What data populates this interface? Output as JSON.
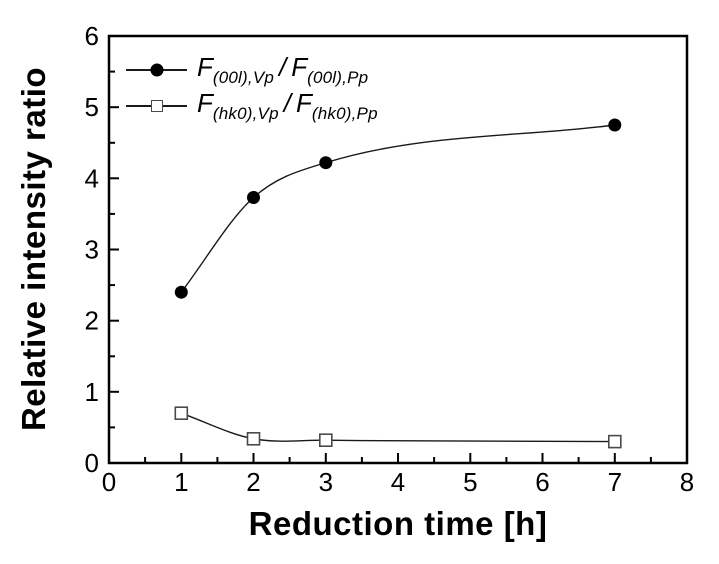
{
  "legend": {
    "items": [
      {
        "marker": "filled-circle",
        "f1": "F",
        "sub1": "(00l),Vp",
        "sep": "/",
        "f2": "F",
        "sub2": "(00l),Pp"
      },
      {
        "marker": "open-square",
        "f1": "F",
        "sub1": "(hk0),Vp",
        "sep": "/",
        "f2": "F",
        "sub2": "(hk0),Pp"
      }
    ]
  },
  "chart_data": {
    "type": "line",
    "title": "",
    "xlabel": "Reduction time [h]",
    "ylabel": "Relative intensity ratio",
    "xlim": [
      0,
      8
    ],
    "ylim": [
      0,
      6
    ],
    "x_ticks": [
      0,
      1,
      2,
      3,
      4,
      5,
      6,
      7,
      8
    ],
    "y_ticks": [
      0,
      1,
      2,
      3,
      4,
      5,
      6
    ],
    "minor_tick_step": 0.5,
    "grid": false,
    "legend_position": "top-left-inside",
    "frame_color": "#000000",
    "line_color": "#1a1a1a",
    "series": [
      {
        "name": "F(00l),Vp / F(00l),Pp",
        "marker": "filled-circle",
        "color": "#000000",
        "x": [
          1,
          2,
          3,
          7
        ],
        "y": [
          2.4,
          3.73,
          4.22,
          4.75
        ]
      },
      {
        "name": "F(hk0),Vp / F(hk0),Pp",
        "marker": "open-square",
        "color": "#000000",
        "x": [
          1,
          2,
          3,
          7
        ],
        "y": [
          0.7,
          0.34,
          0.32,
          0.3
        ]
      }
    ]
  }
}
